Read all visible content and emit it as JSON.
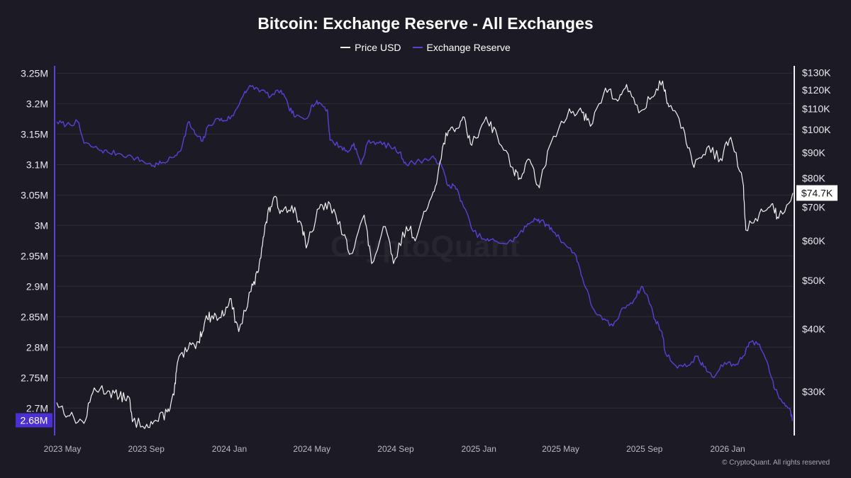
{
  "title": "Bitcoin: Exchange Reserve - All Exchanges",
  "watermark": "CryptoQuant",
  "copyright": "© CryptoQuant. All rights reserved",
  "colors": {
    "background": "#1c1b25",
    "price": "#f2f2f2",
    "reserve": "#5b3fd6",
    "grid": "#2e2d3a",
    "label_bg": "#4b2fd1"
  },
  "chart_data": {
    "type": "line",
    "title": "Bitcoin: Exchange Reserve - All Exchanges",
    "legend_position": "top-center",
    "grid": true,
    "x_ticks": [
      "2023 May",
      "2023 Sep",
      "2024 Jan",
      "2024 May",
      "2024 Sep",
      "2025 Jan",
      "2025 May",
      "2025 Sep",
      "2026 Jan"
    ],
    "x_tick_dates": [
      "2023-05-01",
      "2023-09-01",
      "2024-01-01",
      "2024-05-01",
      "2024-09-01",
      "2025-01-01",
      "2025-05-01",
      "2025-09-01",
      "2026-01-01"
    ],
    "x_range": [
      "2023-05-01",
      "2026-04-15"
    ],
    "y_left": {
      "ticks": [
        "3.25M",
        "3.2M",
        "3.15M",
        "3.1M",
        "3.05M",
        "3M",
        "2.95M",
        "2.9M",
        "2.85M",
        "2.8M",
        "2.75M",
        "2.7M"
      ],
      "tick_values": [
        3250000,
        3200000,
        3150000,
        3100000,
        3050000,
        3000000,
        2950000,
        2900000,
        2850000,
        2800000,
        2750000,
        2700000
      ],
      "range": [
        2655000,
        3262000
      ],
      "current_label": "2.68M",
      "current_value": 2680000
    },
    "y_right": {
      "scale": "log",
      "ticks": [
        "$130K",
        "$120K",
        "$110K",
        "$100K",
        "$90K",
        "$80K",
        "$70K",
        "$60K",
        "$50K",
        "$40K",
        "$30K"
      ],
      "tick_values": [
        130000,
        120000,
        110000,
        100000,
        90000,
        80000,
        70000,
        60000,
        50000,
        40000,
        30000
      ],
      "range": [
        24500,
        134000
      ],
      "current_label": "$74.7K",
      "current_value": 74700
    },
    "series": [
      {
        "name": "Exchange Reserve",
        "axis": "left",
        "color": "#5b3fd6",
        "points": [
          [
            "2023-05-01",
            3170000
          ],
          [
            "2023-05-15",
            3165000
          ],
          [
            "2023-06-01",
            3170000
          ],
          [
            "2023-06-10",
            3135000
          ],
          [
            "2023-07-01",
            3125000
          ],
          [
            "2023-07-15",
            3120000
          ],
          [
            "2023-08-01",
            3118000
          ],
          [
            "2023-08-20",
            3112000
          ],
          [
            "2023-09-05",
            3105000
          ],
          [
            "2023-09-20",
            3098000
          ],
          [
            "2023-10-01",
            3102000
          ],
          [
            "2023-10-20",
            3112000
          ],
          [
            "2023-11-01",
            3130000
          ],
          [
            "2023-11-10",
            3170000
          ],
          [
            "2023-11-20",
            3150000
          ],
          [
            "2023-12-01",
            3138000
          ],
          [
            "2023-12-10",
            3165000
          ],
          [
            "2023-12-25",
            3175000
          ],
          [
            "2024-01-01",
            3172000
          ],
          [
            "2024-01-15",
            3180000
          ],
          [
            "2024-02-01",
            3220000
          ],
          [
            "2024-02-10",
            3228000
          ],
          [
            "2024-02-25",
            3222000
          ],
          [
            "2024-03-10",
            3212000
          ],
          [
            "2024-03-25",
            3222000
          ],
          [
            "2024-04-05",
            3195000
          ],
          [
            "2024-04-15",
            3178000
          ],
          [
            "2024-05-01",
            3175000
          ],
          [
            "2024-05-10",
            3198000
          ],
          [
            "2024-05-20",
            3202000
          ],
          [
            "2024-06-01",
            3190000
          ],
          [
            "2024-06-05",
            3140000
          ],
          [
            "2024-06-20",
            3130000
          ],
          [
            "2024-07-01",
            3120000
          ],
          [
            "2024-07-10",
            3135000
          ],
          [
            "2024-07-20",
            3100000
          ],
          [
            "2024-08-01",
            3140000
          ],
          [
            "2024-08-15",
            3135000
          ],
          [
            "2024-09-01",
            3130000
          ],
          [
            "2024-09-15",
            3120000
          ],
          [
            "2024-09-25",
            3100000
          ],
          [
            "2024-10-10",
            3105000
          ],
          [
            "2024-10-25",
            3108000
          ],
          [
            "2024-11-05",
            3110000
          ],
          [
            "2024-11-15",
            3100000
          ],
          [
            "2024-11-25",
            3065000
          ],
          [
            "2024-12-05",
            3065000
          ],
          [
            "2024-12-15",
            3040000
          ],
          [
            "2025-01-01",
            2990000
          ],
          [
            "2025-01-20",
            2975000
          ],
          [
            "2025-02-01",
            2975000
          ],
          [
            "2025-02-20",
            2970000
          ],
          [
            "2025-03-05",
            2980000
          ],
          [
            "2025-03-20",
            2998000
          ],
          [
            "2025-04-01",
            3012000
          ],
          [
            "2025-04-10",
            3007000
          ],
          [
            "2025-04-20",
            3000000
          ],
          [
            "2025-05-01",
            2988000
          ],
          [
            "2025-05-15",
            2970000
          ],
          [
            "2025-06-01",
            2950000
          ],
          [
            "2025-06-10",
            2915000
          ],
          [
            "2025-06-25",
            2865000
          ],
          [
            "2025-07-10",
            2845000
          ],
          [
            "2025-07-25",
            2835000
          ],
          [
            "2025-08-10",
            2865000
          ],
          [
            "2025-08-25",
            2878000
          ],
          [
            "2025-09-05",
            2900000
          ],
          [
            "2025-09-15",
            2880000
          ],
          [
            "2025-09-25",
            2845000
          ],
          [
            "2025-10-05",
            2825000
          ],
          [
            "2025-10-10",
            2790000
          ],
          [
            "2025-10-25",
            2770000
          ],
          [
            "2025-11-10",
            2768000
          ],
          [
            "2025-11-25",
            2785000
          ],
          [
            "2025-12-05",
            2768000
          ],
          [
            "2025-12-20",
            2750000
          ],
          [
            "2026-01-05",
            2775000
          ],
          [
            "2026-01-20",
            2770000
          ],
          [
            "2026-02-01",
            2785000
          ],
          [
            "2026-02-10",
            2808000
          ],
          [
            "2026-02-25",
            2805000
          ],
          [
            "2026-03-10",
            2770000
          ],
          [
            "2026-03-20",
            2730000
          ],
          [
            "2026-04-01",
            2708000
          ],
          [
            "2026-04-10",
            2700000
          ],
          [
            "2026-04-15",
            2680000
          ]
        ]
      },
      {
        "name": "Price USD",
        "axis": "right",
        "color": "#f2f2f2",
        "points": [
          [
            "2023-05-01",
            28500
          ],
          [
            "2023-05-20",
            26800
          ],
          [
            "2023-06-10",
            25900
          ],
          [
            "2023-06-25",
            30500
          ],
          [
            "2023-07-15",
            30100
          ],
          [
            "2023-08-01",
            29300
          ],
          [
            "2023-08-15",
            29200
          ],
          [
            "2023-08-20",
            26100
          ],
          [
            "2023-09-10",
            25800
          ],
          [
            "2023-09-25",
            26200
          ],
          [
            "2023-10-10",
            27300
          ],
          [
            "2023-10-20",
            29500
          ],
          [
            "2023-10-25",
            34200
          ],
          [
            "2023-11-10",
            36500
          ],
          [
            "2023-11-25",
            37700
          ],
          [
            "2023-12-05",
            41800
          ],
          [
            "2023-12-15",
            42500
          ],
          [
            "2023-12-28",
            42100
          ],
          [
            "2024-01-10",
            46000
          ],
          [
            "2024-01-23",
            39500
          ],
          [
            "2024-02-10",
            47500
          ],
          [
            "2024-02-20",
            51800
          ],
          [
            "2024-02-28",
            61000
          ],
          [
            "2024-03-05",
            67000
          ],
          [
            "2024-03-14",
            73000
          ],
          [
            "2024-03-25",
            69000
          ],
          [
            "2024-04-10",
            70500
          ],
          [
            "2024-04-25",
            64000
          ],
          [
            "2024-05-01",
            58000
          ],
          [
            "2024-05-20",
            69500
          ],
          [
            "2024-06-05",
            71000
          ],
          [
            "2024-06-25",
            61500
          ],
          [
            "2024-07-05",
            56500
          ],
          [
            "2024-07-25",
            67500
          ],
          [
            "2024-08-05",
            54000
          ],
          [
            "2024-08-25",
            64000
          ],
          [
            "2024-09-06",
            54000
          ],
          [
            "2024-09-25",
            64000
          ],
          [
            "2024-10-10",
            61000
          ],
          [
            "2024-10-29",
            72000
          ],
          [
            "2024-11-10",
            81000
          ],
          [
            "2024-11-22",
            98500
          ],
          [
            "2024-12-05",
            99000
          ],
          [
            "2024-12-17",
            106000
          ],
          [
            "2024-12-30",
            93000
          ],
          [
            "2025-01-20",
            106000
          ],
          [
            "2025-02-05",
            97500
          ],
          [
            "2025-02-28",
            84000
          ],
          [
            "2025-03-10",
            80000
          ],
          [
            "2025-03-25",
            87000
          ],
          [
            "2025-04-08",
            76500
          ],
          [
            "2025-04-25",
            94000
          ],
          [
            "2025-05-22",
            110000
          ],
          [
            "2025-06-10",
            108000
          ],
          [
            "2025-06-22",
            101500
          ],
          [
            "2025-07-14",
            121000
          ],
          [
            "2025-08-01",
            114000
          ],
          [
            "2025-08-14",
            123000
          ],
          [
            "2025-09-01",
            108000
          ],
          [
            "2025-09-20",
            116000
          ],
          [
            "2025-10-06",
            125000
          ],
          [
            "2025-10-15",
            111000
          ],
          [
            "2025-11-05",
            101000
          ],
          [
            "2025-11-21",
            84000
          ],
          [
            "2025-12-10",
            92000
          ],
          [
            "2025-12-30",
            87500
          ],
          [
            "2026-01-14",
            96500
          ],
          [
            "2026-02-01",
            78000
          ],
          [
            "2026-02-05",
            63000
          ],
          [
            "2026-02-25",
            68000
          ],
          [
            "2026-03-15",
            71000
          ],
          [
            "2026-03-25",
            66500
          ],
          [
            "2026-04-15",
            74700
          ]
        ]
      }
    ]
  }
}
